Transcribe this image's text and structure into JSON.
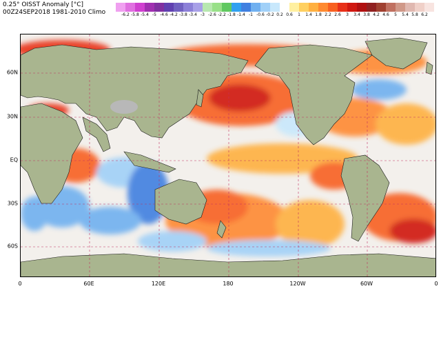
{
  "header": {
    "title": "0.25° OISST Anomaly [°C]",
    "subtitle": "00Z24SEP2018 1981-2010 Climo"
  },
  "colorbar": {
    "labels": [
      "-6.2",
      "-5.8",
      "-5.4",
      "-5",
      "-4.6",
      "-4.2",
      "-3.8",
      "-3.4",
      "-3",
      "-2.6",
      "-2.2",
      "-1.8",
      "-1.4",
      "-1",
      "-0.6",
      "-0.2",
      "0.2",
      "0.6",
      "1",
      "1.4",
      "1.8",
      "2.2",
      "2.6",
      "3",
      "3.4",
      "3.8",
      "4.2",
      "4.6",
      "5",
      "5.4",
      "5.8",
      "6.2"
    ],
    "colors": [
      "#f0a0f0",
      "#e070e0",
      "#d040d0",
      "#a030b0",
      "#8030a0",
      "#6040b0",
      "#7060c0",
      "#8c80d8",
      "#a8a0e8",
      "#b8e8b0",
      "#98e088",
      "#60c860",
      "#30a0f0",
      "#4080e0",
      "#70b0f0",
      "#a0d0f8",
      "#c8e8fc",
      "#ffffff",
      "#fff0a0",
      "#ffd060",
      "#ffb040",
      "#ff8a30",
      "#f86020",
      "#e83018",
      "#d01810",
      "#b01010",
      "#902020",
      "#a04030",
      "#c07060",
      "#d09888",
      "#e0b8b0",
      "#f0d0c8",
      "#f8e4e0"
    ]
  },
  "map": {
    "lat_labels": [
      "60N",
      "30N",
      "EQ",
      "30S",
      "60S"
    ],
    "lon_labels": [
      "0",
      "60E",
      "120E",
      "180",
      "120W",
      "60W",
      "0"
    ],
    "ocean_base_color": "#f3f0ec",
    "land_color": "#a9b58f",
    "grid_color": "#c03060"
  }
}
